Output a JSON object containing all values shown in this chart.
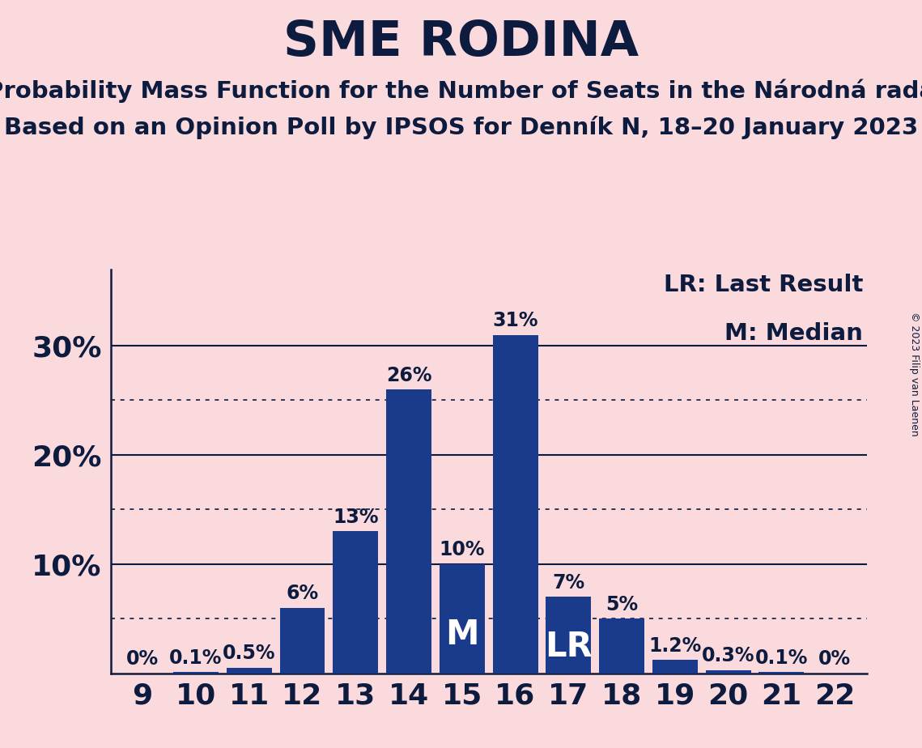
{
  "title": "SME RODINA",
  "subtitle1": "Probability Mass Function for the Number of Seats in the Národná rada",
  "subtitle2": "Based on an Opinion Poll by IPSOS for Denník N, 18–20 January 2023",
  "copyright": "© 2023 Filip van Laenen",
  "categories": [
    9,
    10,
    11,
    12,
    13,
    14,
    15,
    16,
    17,
    18,
    19,
    20,
    21,
    22
  ],
  "values": [
    0.0,
    0.1,
    0.5,
    6.0,
    13.0,
    26.0,
    10.0,
    31.0,
    7.0,
    5.0,
    1.2,
    0.3,
    0.1,
    0.0
  ],
  "labels": [
    "0%",
    "0.1%",
    "0.5%",
    "6%",
    "13%",
    "26%",
    "10%",
    "31%",
    "7%",
    "5%",
    "1.2%",
    "0.3%",
    "0.1%",
    "0%"
  ],
  "bar_color": "#1a3a8c",
  "background_color": "#fadadd",
  "text_color": "#0d1b3e",
  "yticks": [
    0,
    10,
    20,
    30
  ],
  "dotted_lines": [
    5,
    15,
    25
  ],
  "solid_lines": [
    10,
    20,
    30
  ],
  "median_bar": 15,
  "lr_bar": 17,
  "legend_lr": "LR: Last Result",
  "legend_m": "M: Median",
  "bar_label_fontsize": 17,
  "title_fontsize": 44,
  "subtitle_fontsize": 21,
  "axis_tick_fontsize": 26,
  "legend_fontsize": 21,
  "inner_label_fontsize": 30,
  "copyright_fontsize": 9
}
